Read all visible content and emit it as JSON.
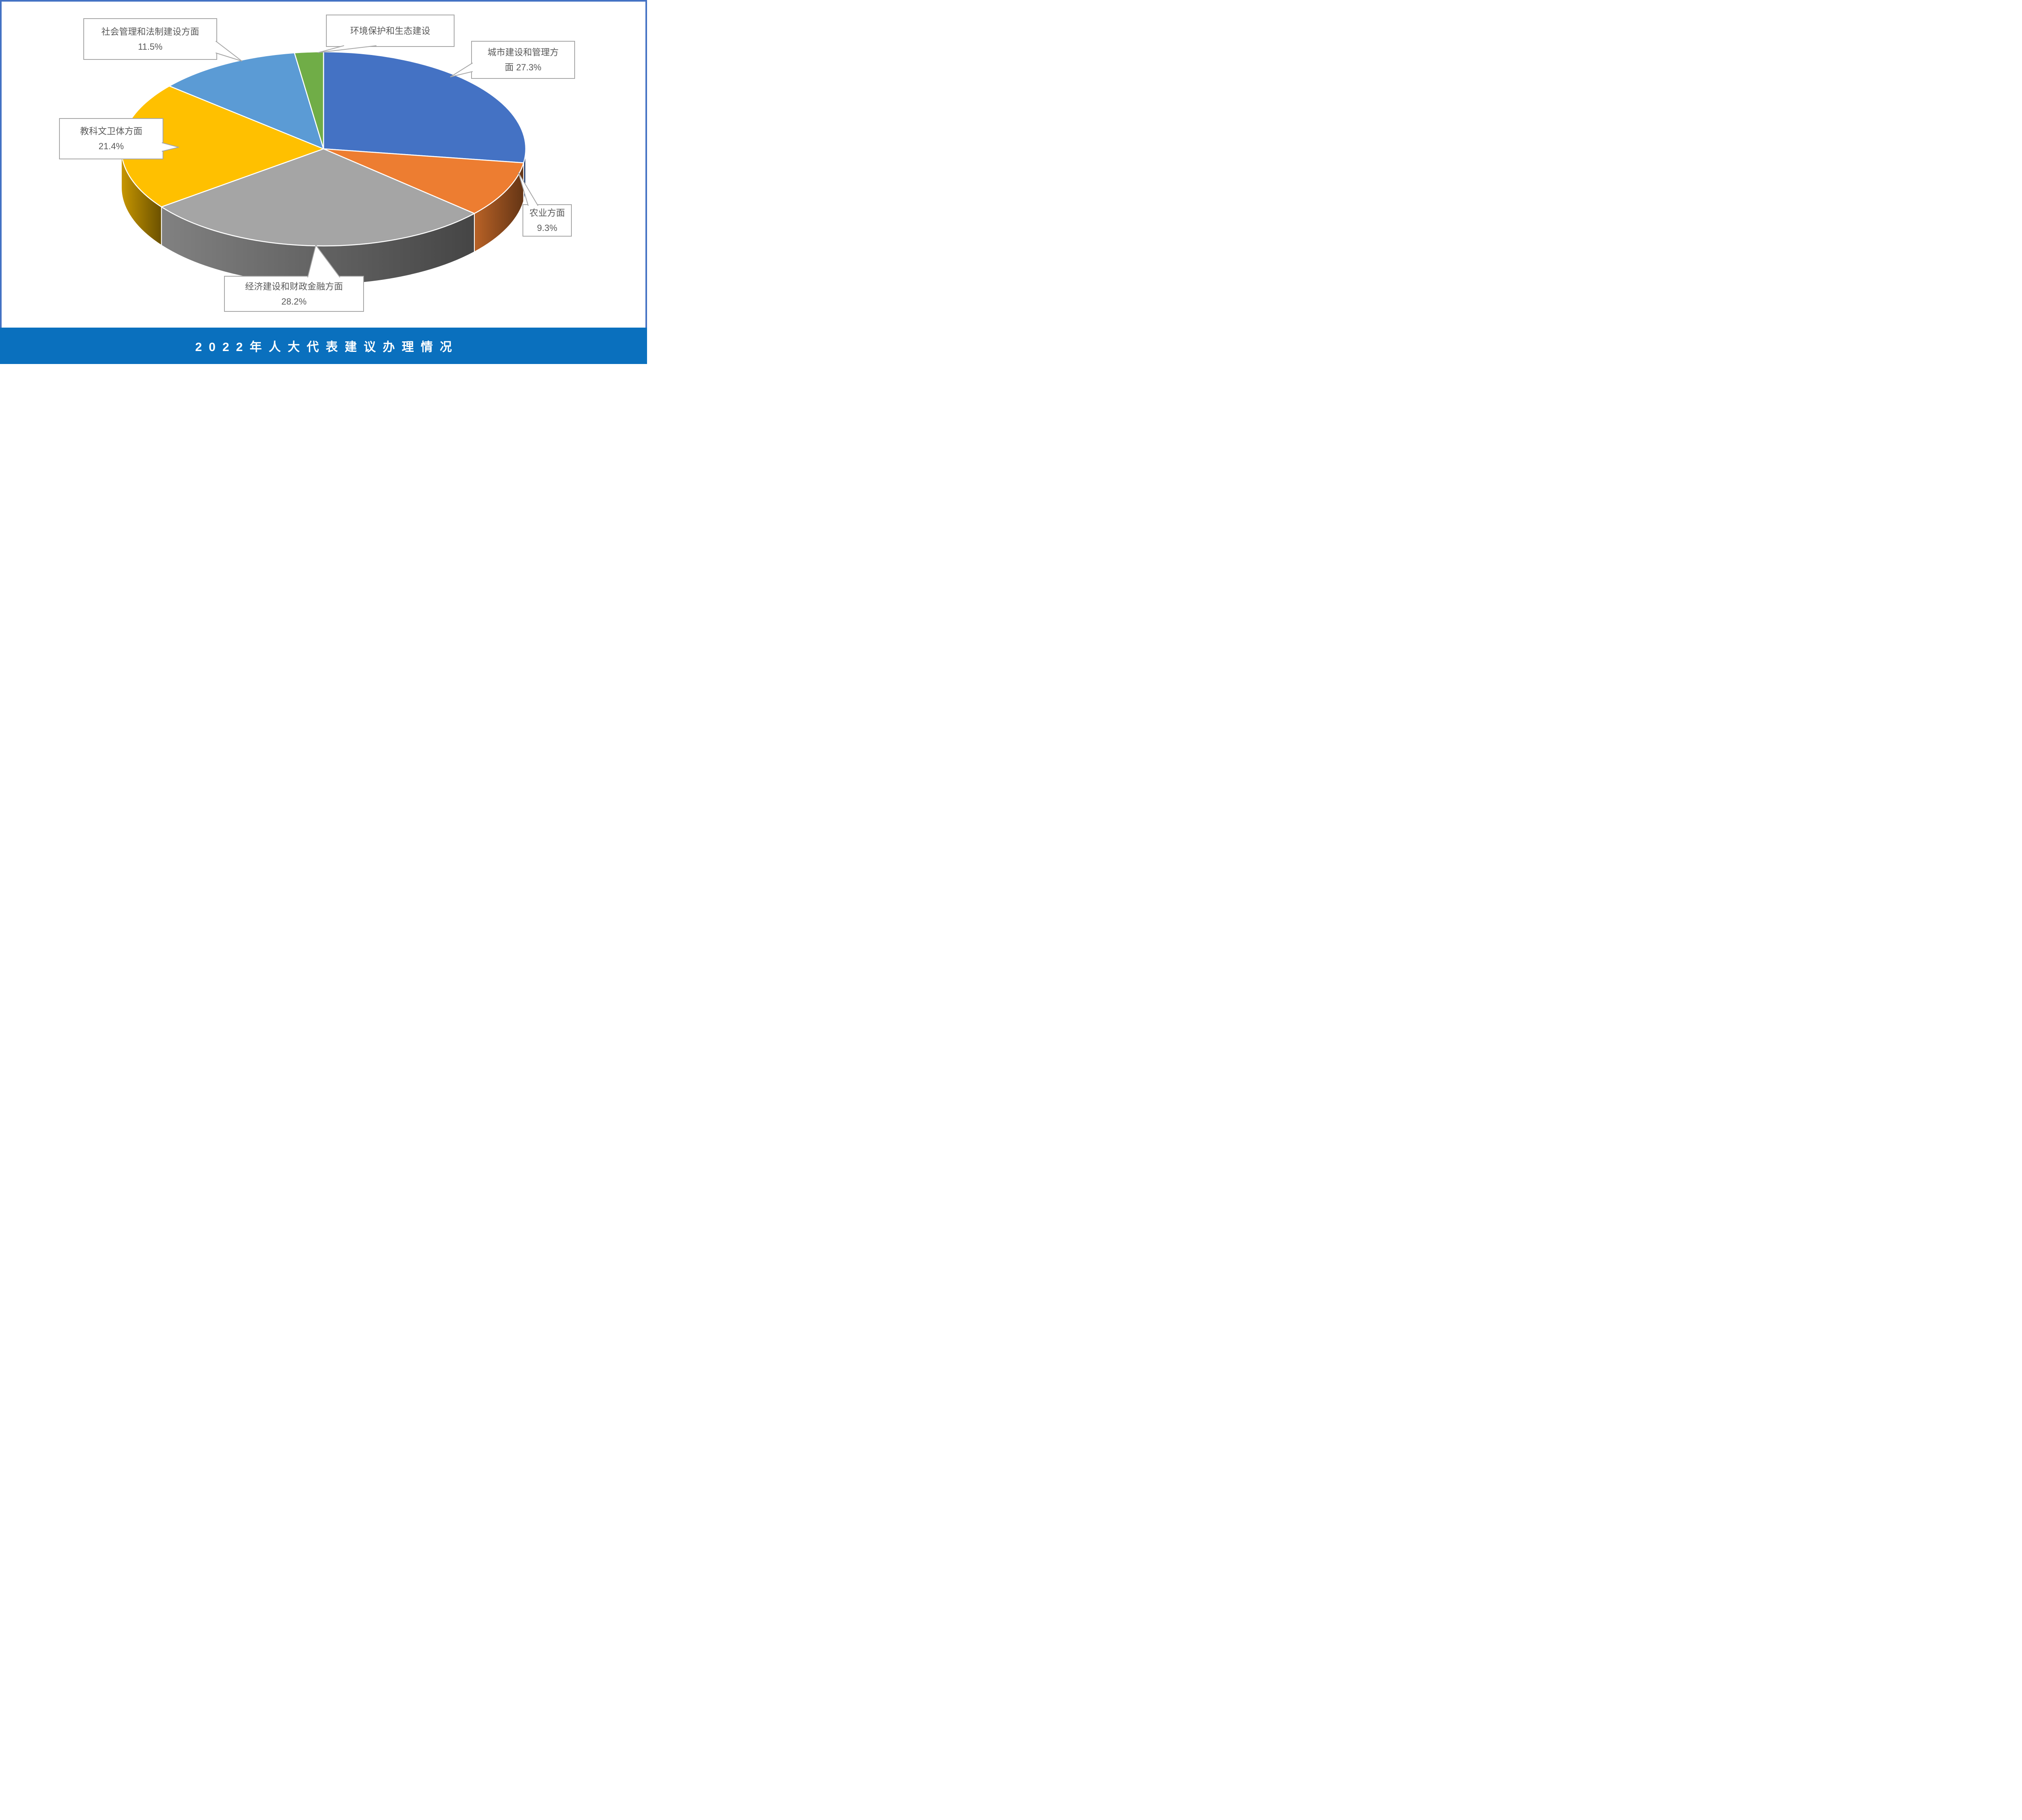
{
  "page": {
    "background": "#FFFFFF",
    "frame_color": "#4472C4",
    "callout_border_color": "#A6A6A6",
    "callout_fill": "#FFFFFF",
    "callout_text_color": "#595959",
    "slice_separator_color": "#FFFFFF"
  },
  "banner": {
    "color": "#0A70BE",
    "title": "2022年人大代表建议办理情况",
    "title_color": "#FFFFFF"
  },
  "chart_data": {
    "type": "pie",
    "style": "3d",
    "title": "2022年人大代表建议办理情况",
    "direction": "clockwise",
    "start_angle_deg": 0,
    "legend_position": "none",
    "unit": "%",
    "categories": [
      "城市建设和管理方面",
      "农业方面",
      "经济建设和财政金融方面",
      "教科文卫体方面",
      "社会管理和法制建设方面",
      "环境保护和生态建设"
    ],
    "values": [
      27.3,
      9.3,
      28.2,
      21.4,
      11.5,
      2.3
    ],
    "colors": [
      "#4472C4",
      "#ED7D31",
      "#A5A5A5",
      "#FFC000",
      "#5B9BD5",
      "#70AD47"
    ]
  },
  "callouts": [
    {
      "target": "社会管理和法制建设方面",
      "lines": [
        "社会管理和法制建设方面",
        "11.5%"
      ]
    },
    {
      "target": "环境保护和生态建设",
      "lines": [
        "环境保护和生态建设"
      ]
    },
    {
      "target": "城市建设和管理方面",
      "lines": [
        "城市建设和管理方",
        "面 27.3%"
      ]
    },
    {
      "target": "农业方面",
      "lines": [
        "农业方面",
        "9.3%"
      ]
    },
    {
      "target": "教科文卫体方面",
      "lines": [
        "教科文卫体方面",
        "21.4%"
      ]
    },
    {
      "target": "经济建设和财政金融方面",
      "lines": [
        "经济建设和财政金融方面",
        "28.2%"
      ]
    }
  ]
}
